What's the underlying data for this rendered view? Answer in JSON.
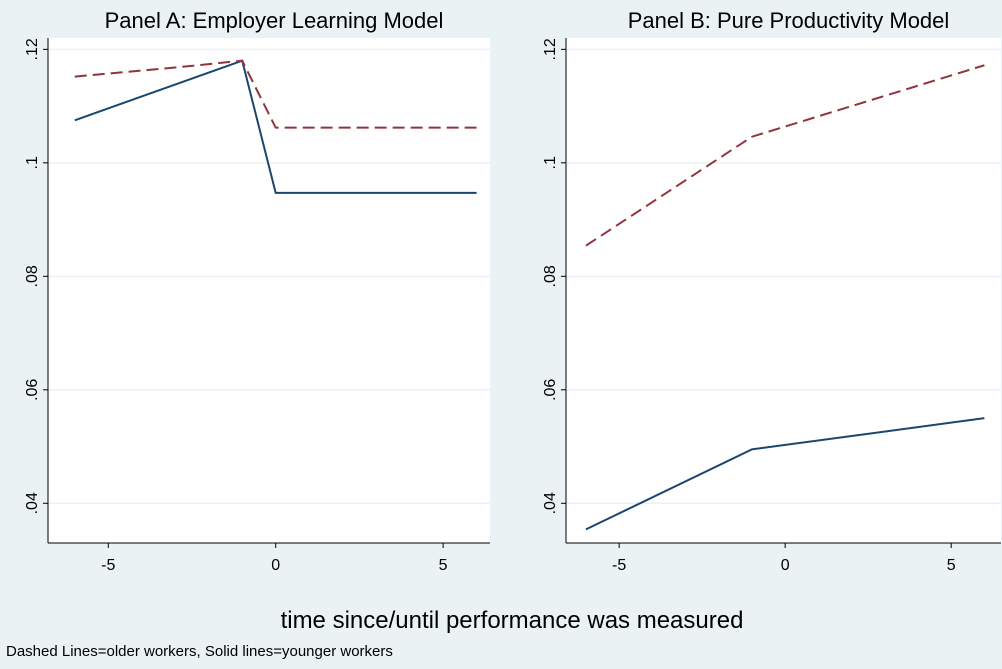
{
  "chart_data": [
    {
      "type": "line",
      "title": "Panel A: Employer Learning Model",
      "xlim": [
        -6.8,
        6.4
      ],
      "xticks": [
        -5,
        0,
        5
      ],
      "ylim": [
        0.033,
        0.122
      ],
      "yticks": [
        {
          "value": 0.04,
          "label": ".04"
        },
        {
          "value": 0.06,
          "label": ".06"
        },
        {
          "value": 0.08,
          "label": ".08"
        },
        {
          "value": 0.1,
          "label": ".1"
        },
        {
          "value": 0.12,
          "label": ".12"
        }
      ],
      "grid": true,
      "series": [
        {
          "color": "#1a476f",
          "style": "solid",
          "x": [
            -6,
            -1,
            0,
            6
          ],
          "values": [
            0.1075,
            0.118,
            0.0947,
            0.0947
          ]
        },
        {
          "color": "#90353b",
          "style": "dashed",
          "x": [
            -6,
            -3,
            -1,
            0,
            6
          ],
          "values": [
            0.1152,
            0.1168,
            0.118,
            0.1062,
            0.1062
          ]
        }
      ]
    },
    {
      "type": "line",
      "title": "Panel B: Pure Productivity Model",
      "xlim": [
        -6.6,
        6.5
      ],
      "xticks": [
        -5,
        0,
        5
      ],
      "ylim": [
        0.033,
        0.122
      ],
      "yticks": [
        {
          "value": 0.04,
          "label": ".04"
        },
        {
          "value": 0.06,
          "label": ".06"
        },
        {
          "value": 0.08,
          "label": ".08"
        },
        {
          "value": 0.1,
          "label": ".1"
        },
        {
          "value": 0.12,
          "label": ".12"
        }
      ],
      "grid": true,
      "series": [
        {
          "color": "#1a476f",
          "style": "solid",
          "x": [
            -6,
            -1,
            6
          ],
          "values": [
            0.0354,
            0.0495,
            0.055
          ]
        },
        {
          "color": "#90353b",
          "style": "dashed",
          "x": [
            -6,
            -1,
            6
          ],
          "values": [
            0.0854,
            0.1046,
            0.1172
          ]
        }
      ]
    }
  ],
  "xlabel": "time since/until performance was measured",
  "note": "Dashed Lines=older workers, Solid lines=younger workers"
}
